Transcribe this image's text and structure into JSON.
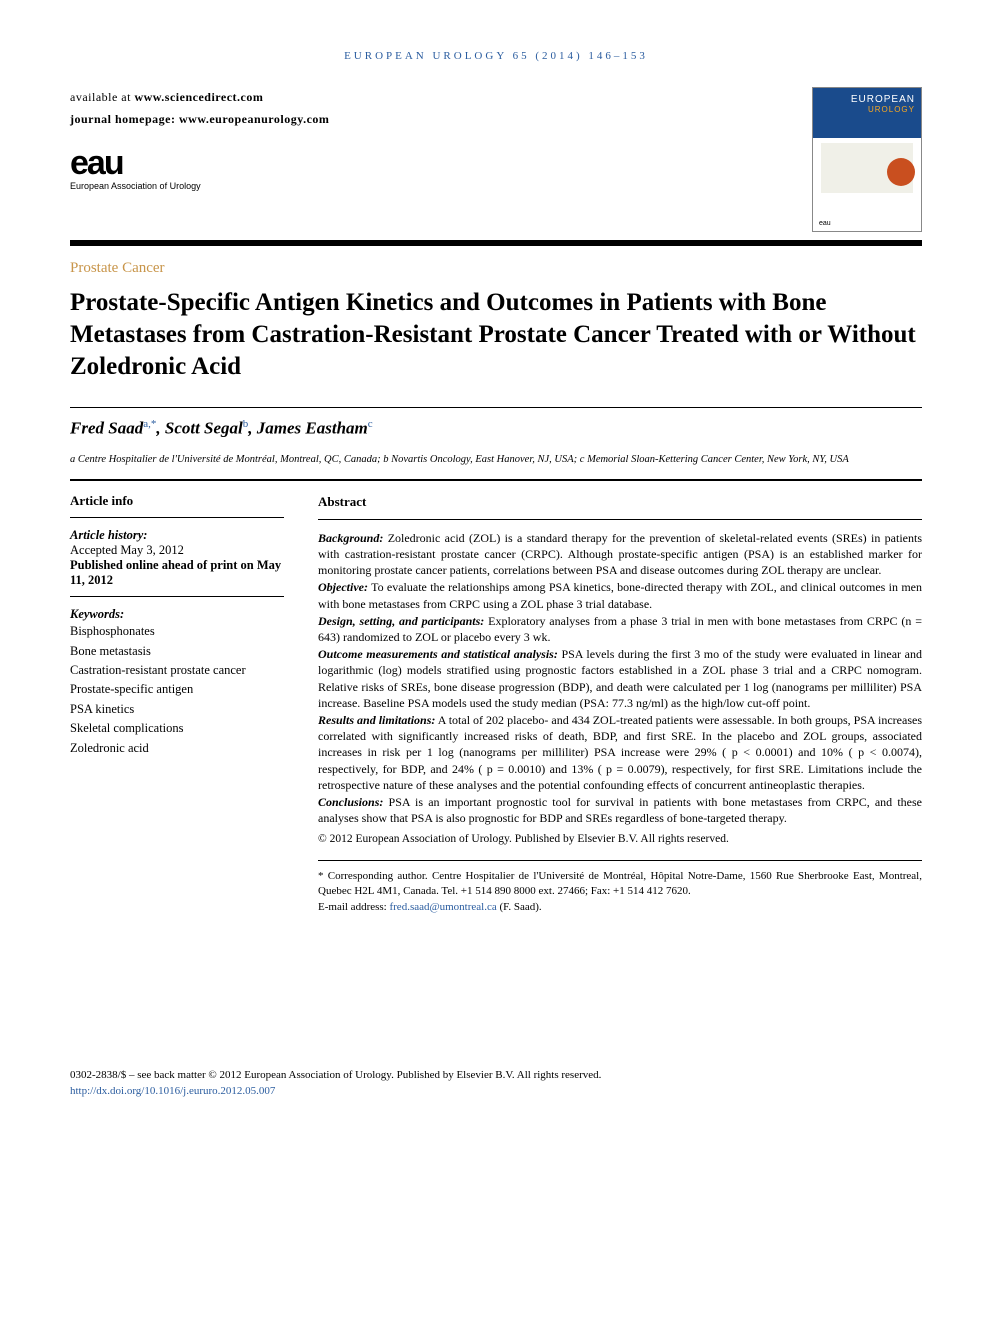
{
  "running_header": "EUROPEAN UROLOGY 65 (2014) 146–153",
  "availability": {
    "line1_prefix": "available at ",
    "line1_url": "www.sciencedirect.com",
    "line2_prefix": "journal homepage: ",
    "line2_url": "www.europeanurology.com"
  },
  "logo": {
    "mark": "eau",
    "subtitle": "European Association of Urology"
  },
  "cover": {
    "title": "EUROPEAN",
    "subtitle": "UROLOGY",
    "footer_mark": "eau"
  },
  "category": "Prostate Cancer",
  "title": "Prostate-Specific Antigen Kinetics and Outcomes in Patients with Bone Metastases from Castration-Resistant Prostate Cancer Treated with or Without Zoledronic Acid",
  "authors": [
    {
      "name": "Fred Saad",
      "marks": "a,*"
    },
    {
      "name": "Scott Segal",
      "marks": "b"
    },
    {
      "name": "James Eastham",
      "marks": "c"
    }
  ],
  "affiliations": "a Centre Hospitalier de l'Université de Montréal, Montreal, QC, Canada; b Novartis Oncology, East Hanover, NJ, USA; c Memorial Sloan-Kettering Cancer Center, New York, NY, USA",
  "article_info": {
    "heading": "Article info",
    "history_label": "Article history:",
    "accepted": "Accepted May 3, 2012",
    "published": "Published online ahead of print on May 11, 2012",
    "keywords_label": "Keywords:",
    "keywords": [
      "Bisphosphonates",
      "Bone metastasis",
      "Castration-resistant prostate cancer",
      "Prostate-specific antigen",
      "PSA kinetics",
      "Skeletal complications",
      "Zoledronic acid"
    ]
  },
  "abstract": {
    "heading": "Abstract",
    "sections": [
      {
        "label": "Background:",
        "text": " Zoledronic acid (ZOL) is a standard therapy for the prevention of skeletal-related events (SREs) in patients with castration-resistant prostate cancer (CRPC). Although prostate-specific antigen (PSA) is an established marker for monitoring prostate cancer patients, correlations between PSA and disease outcomes during ZOL therapy are unclear."
      },
      {
        "label": "Objective:",
        "text": " To evaluate the relationships among PSA kinetics, bone-directed therapy with ZOL, and clinical outcomes in men with bone metastases from CRPC using a ZOL phase 3 trial database."
      },
      {
        "label": "Design, setting, and participants:",
        "text": " Exploratory analyses from a phase 3 trial in men with bone metastases from CRPC (n = 643) randomized to ZOL or placebo every 3 wk."
      },
      {
        "label": "Outcome measurements and statistical analysis:",
        "text": " PSA levels during the first 3 mo of the study were evaluated in linear and logarithmic (log) models stratified using prognostic factors established in a ZOL phase 3 trial and a CRPC nomogram. Relative risks of SREs, bone disease progression (BDP), and death were calculated per 1 log (nanograms per milliliter) PSA increase. Baseline PSA models used the study median (PSA: 77.3 ng/ml) as the high/low cut-off point."
      },
      {
        "label": "Results and limitations:",
        "text": " A total of 202 placebo- and 434 ZOL-treated patients were assessable. In both groups, PSA increases correlated with significantly increased risks of death, BDP, and first SRE. In the placebo and ZOL groups, associated increases in risk per 1 log (nanograms per milliliter) PSA increase were 29% ( p < 0.0001) and 10% ( p < 0.0074), respectively, for BDP, and 24% ( p = 0.0010) and 13% ( p = 0.0079), respectively, for first SRE. Limitations include the retrospective nature of these analyses and the potential confounding effects of concurrent antineoplastic therapies."
      },
      {
        "label": "Conclusions:",
        "text": " PSA is an important prognostic tool for survival in patients with bone metastases from CRPC, and these analyses show that PSA is also prognostic for BDP and SREs regardless of bone-targeted therapy."
      }
    ],
    "copyright": "© 2012 European Association of Urology. Published by Elsevier B.V. All rights reserved."
  },
  "corresponding": {
    "star": "*",
    "text": " Corresponding author. Centre Hospitalier de l'Université de Montréal, Hôpital Notre-Dame, 1560 Rue Sherbrooke East, Montreal, Quebec H2L 4M1, Canada. Tel. +1 514 890 8000 ext. 27466; Fax: +1 514 412 7620.",
    "email_label": "E-mail address: ",
    "email": "fred.saad@umontreal.ca",
    "email_suffix": " (F. Saad)."
  },
  "footer": {
    "line1": "0302-2838/$ – see back matter © 2012 European Association of Urology. Published by Elsevier B.V. All rights reserved.",
    "doi": "http://dx.doi.org/10.1016/j.eururo.2012.05.007"
  },
  "colors": {
    "link": "#2a5c9f",
    "category": "#c8954a",
    "rule": "#000000",
    "cover_blue": "#1a4b8c",
    "cover_orange": "#f5a623",
    "cover_badge": "#c94f1f"
  }
}
